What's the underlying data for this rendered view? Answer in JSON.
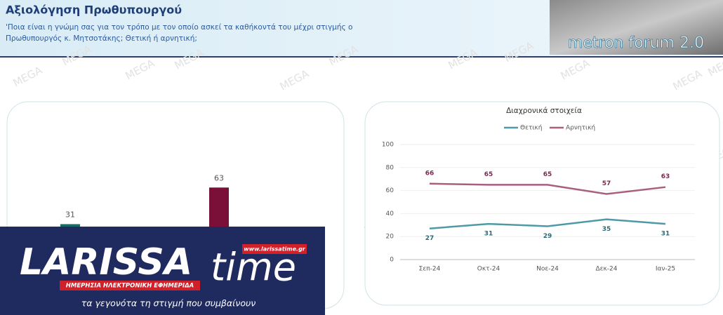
{
  "header": {
    "title": "Αξιολόγηση Πρωθυπουργού",
    "question": [
      "'Ποια είναι η γνώμη σας για τον τρόπο με τον οποίο ασκεί τα καθήκοντά του μέχρι στιγμής ο",
      "Πρωθυπουργός κ. Μητσοτάκης; Θετική ή αρνητική;"
    ],
    "brand": "metron forum 2.0"
  },
  "watermark": "MEGA",
  "overlay": {
    "name_a": "LARISSA",
    "name_b": "time",
    "url": "www.larissatime.gr",
    "tagline": "ΗΜΕΡΗΣΙΑ ΗΛΕΚΤΡΟΝΙΚΗ ΕΦΗΜΕΡΙΔΑ",
    "slogan": "τα γεγονότα τη στιγμή που συμβαίνουν"
  },
  "chart_data": [
    {
      "type": "bar",
      "categories": [
        null,
        null
      ],
      "values": [
        31,
        63
      ],
      "colors": [
        "#1a6b66",
        "#7a1038"
      ]
    },
    {
      "type": "line",
      "title": "Διαχρονικά στοιχεία",
      "categories": [
        "Σεπ-24",
        "Οκτ-24",
        "Νοε-24",
        "Δεκ-24",
        "Ιαν-25"
      ],
      "series": [
        {
          "name": "Θετική",
          "color": "#4f9aa6",
          "values": [
            27,
            31,
            29,
            35,
            31
          ]
        },
        {
          "name": "Αρνητική",
          "color": "#a8607e",
          "values": [
            66,
            65,
            65,
            57,
            63
          ]
        }
      ],
      "ylim": [
        0,
        100
      ],
      "yticks": [
        0,
        20,
        40,
        60,
        80,
        100
      ],
      "grid": true
    }
  ]
}
